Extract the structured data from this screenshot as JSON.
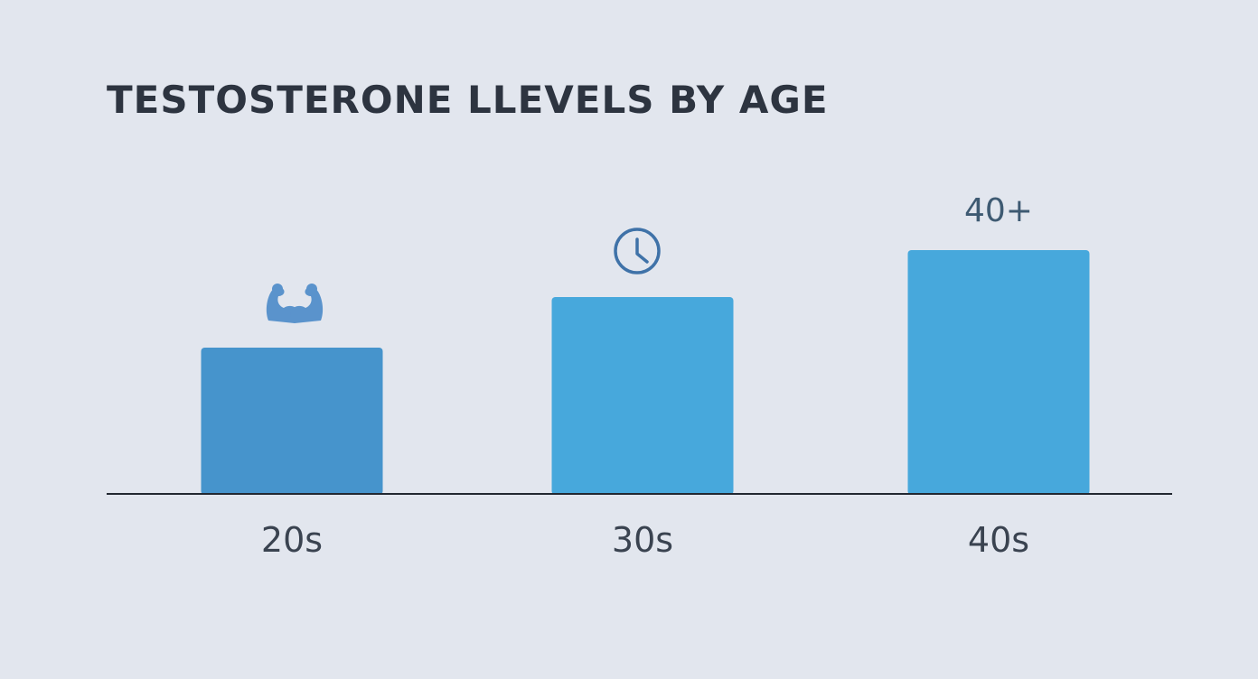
{
  "chart_data": {
    "type": "bar",
    "title": "TESTOSTERONE LLEVELS BY AGE",
    "xlabel": "",
    "ylabel": "",
    "categories": [
      "20s",
      "30s",
      "40s"
    ],
    "values": [
      162,
      218,
      270
    ],
    "ylim": [
      0,
      400
    ],
    "grid": false,
    "legend": "none",
    "annotations": [
      {
        "category": "20s",
        "kind": "icon",
        "icon": "flexed-arms-icon"
      },
      {
        "category": "30s",
        "kind": "icon",
        "icon": "clock-icon"
      },
      {
        "category": "40s",
        "kind": "text",
        "text": "40+"
      }
    ],
    "bar_colors": [
      "#4694cc",
      "#47a8dc",
      "#47a8dc"
    ],
    "icon_colors": {
      "flexed-arms-icon": "#5a93cc",
      "clock-icon": "#3f72a8"
    },
    "axis_color": "#222831"
  }
}
